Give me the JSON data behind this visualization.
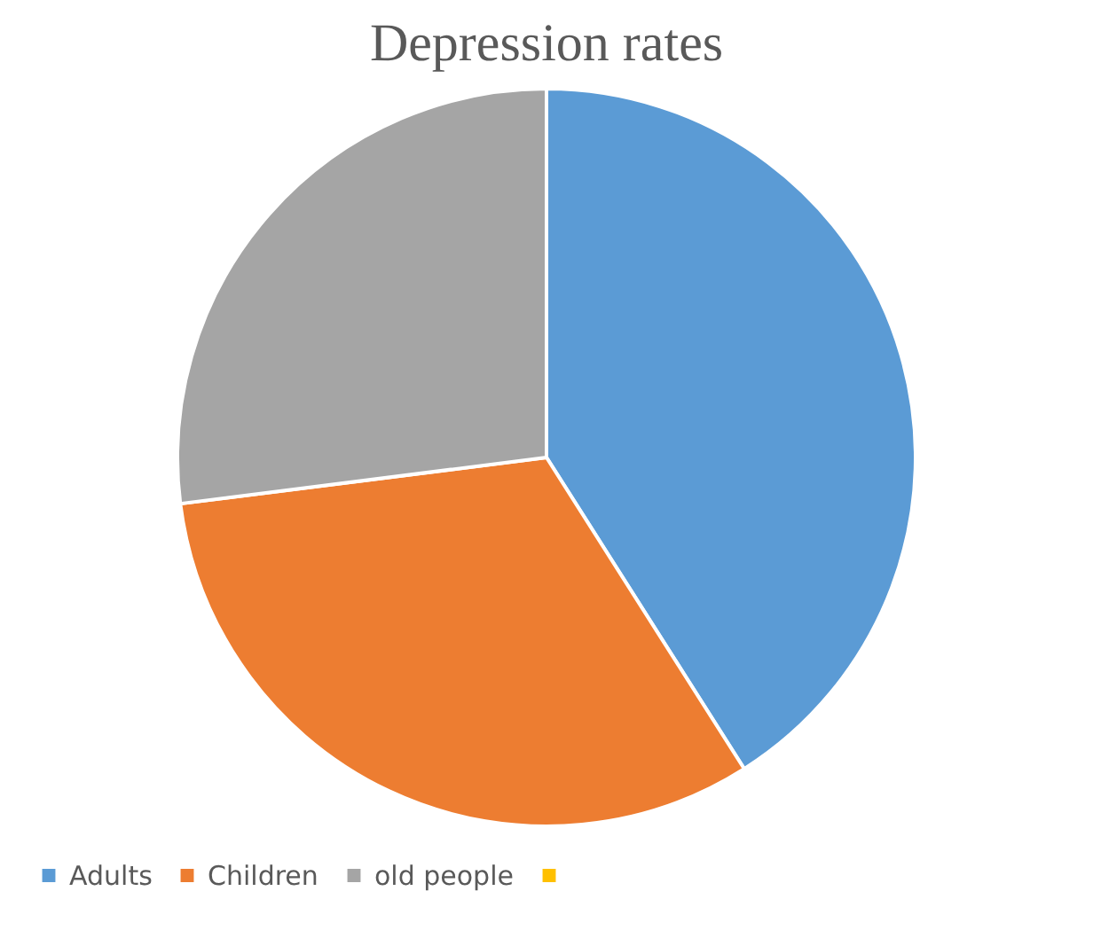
{
  "chart_data": {
    "type": "pie",
    "title": "Depression rates",
    "categories": [
      "Adults",
      "Children",
      "old people",
      null
    ],
    "values": [
      41,
      32,
      27,
      0
    ],
    "colors": [
      "#5b9bd5",
      "#ed7d31",
      "#a5a5a5",
      "#ffc000"
    ],
    "legend": "bottom"
  }
}
